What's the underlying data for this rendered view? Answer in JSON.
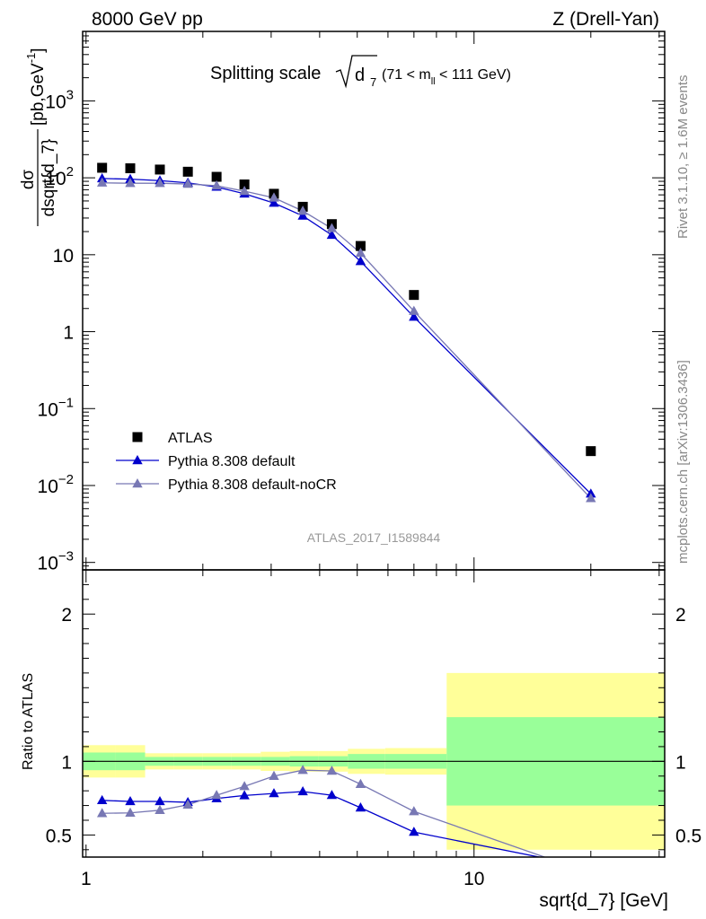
{
  "header": {
    "left": "8000 GeV pp",
    "right": "Z (Drell-Yan)"
  },
  "side_labels": {
    "rivet": "Rivet 3.1.10, ≥ 1.6M events",
    "mcplots": "mcplots.cern.ch [arXiv:1306.3436]"
  },
  "chart_data": {
    "type": "scatter",
    "title_main": "Splitting scale",
    "title_var": "d",
    "title_sub": "7",
    "title_range": "(71 < m",
    "title_range_sub": "ll",
    "title_range_end": " < 111 GeV)",
    "analysis_id": "ATLAS_2017_I1589844",
    "xlabel": "sqrt{d_7} [GeV]",
    "ylabel_top": "dσ / dsqrt{d_7} [pb,GeV⁻¹]",
    "ylabel_top_num": "dσ",
    "ylabel_top_den": "dsqrt{d_7}",
    "ylabel_top_unit": "[pb,GeV",
    "ylabel_top_unit_sup": "-1",
    "ylabel_top_unit_end": "]",
    "ylabel_bottom": "Ratio to ATLAS",
    "x_scale": "log",
    "xlim": [
      0.98,
      31
    ],
    "ylim_top": [
      0.0008,
      8000
    ],
    "ylim_bottom": [
      0.35,
      2.3
    ],
    "y_scale_top": "log",
    "x_ticks": [
      {
        "value": 1,
        "label": "1"
      },
      {
        "value": 10,
        "label": "10"
      }
    ],
    "y_ticks_top": [
      {
        "value": 0.001,
        "base": "10",
        "exp": "−3"
      },
      {
        "value": 0.01,
        "base": "10",
        "exp": "−2"
      },
      {
        "value": 0.1,
        "base": "10",
        "exp": "−1"
      },
      {
        "value": 1,
        "label": "1"
      },
      {
        "value": 10,
        "label": "10"
      },
      {
        "value": 100,
        "base": "10",
        "exp": "2"
      },
      {
        "value": 1000,
        "base": "10",
        "exp": "3"
      }
    ],
    "y_ticks_bottom": [
      {
        "value": 0.5,
        "label": "0.5"
      },
      {
        "value": 1,
        "label": "1"
      },
      {
        "value": 2,
        "label": "2"
      }
    ],
    "legend": {
      "position": "bottom-left",
      "entries": [
        "ATLAS",
        "Pythia 8.308 default",
        "Pythia 8.308 default-noCR"
      ]
    },
    "x": [
      1.1,
      1.3,
      1.55,
      1.83,
      2.17,
      2.56,
      3.05,
      3.62,
      4.3,
      5.1,
      7.0,
      20.0
    ],
    "bin_edges": [
      0.98,
      1.19,
      1.42,
      1.68,
      2.0,
      2.37,
      2.82,
      3.35,
      3.98,
      4.73,
      5.9,
      8.5,
      31.0
    ],
    "series": [
      {
        "name": "ATLAS",
        "color": "#000000",
        "marker": "square",
        "values": [
          135,
          133,
          128,
          120,
          103,
          82,
          62,
          42,
          25,
          13,
          3.0,
          0.028
        ]
      },
      {
        "name": "Pythia 8.308 default",
        "color": "#0000cc",
        "marker": "triangle",
        "values": [
          98,
          96,
          92,
          86,
          76,
          62,
          47,
          32,
          18,
          8.2,
          1.55,
          0.0078
        ],
        "ratio": [
          0.735,
          0.728,
          0.728,
          0.722,
          0.748,
          0.768,
          0.782,
          0.795,
          0.77,
          0.685,
          0.52,
          0.28
        ]
      },
      {
        "name": "Pythia 8.308 default-noCR",
        "color": "#7878b4",
        "marker": "triangle",
        "values": [
          86,
          85,
          85,
          83,
          79,
          67,
          55,
          37,
          22,
          10.5,
          1.85,
          0.0068
        ],
        "ratio": [
          0.647,
          0.65,
          0.668,
          0.705,
          0.77,
          0.83,
          0.9,
          0.94,
          0.935,
          0.845,
          0.66,
          0.24
        ]
      }
    ],
    "uncertainty_bands": {
      "stat_green_half_width": [
        0.06,
        0.06,
        0.03,
        0.03,
        0.03,
        0.03,
        0.03,
        0.035,
        0.035,
        0.05,
        0.05,
        0.3
      ],
      "total_yellow_half_width": [
        0.11,
        0.11,
        0.055,
        0.055,
        0.055,
        0.055,
        0.065,
        0.07,
        0.07,
        0.085,
        0.09,
        0.6
      ]
    },
    "band_colors": {
      "stat": "#99ff99",
      "total": "#ffff99"
    }
  }
}
